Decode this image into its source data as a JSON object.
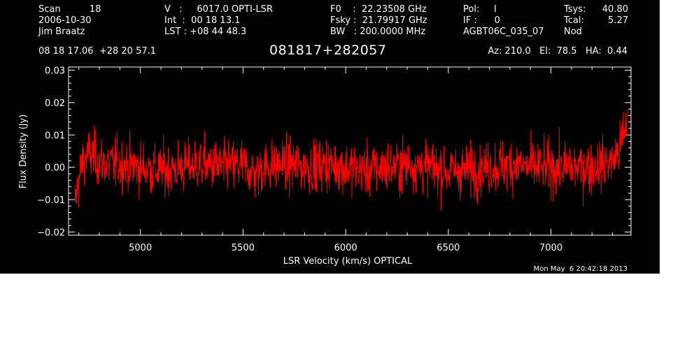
{
  "header": {
    "col1": [
      "Scan          18",
      "2006-10-30",
      "Jim Braatz"
    ],
    "col2": [
      "V   :     6017.0 OPTI-LSR",
      "Int  :  00 18 13.1",
      "LST : +08 44 48.3"
    ],
    "col3": [
      "F0    :  22.23508 GHz",
      "Fsky :  21.79917 GHz",
      "BW   : 200.0000 MHz"
    ],
    "col4": [
      "Pol:     I",
      "IF :      0",
      "AGBT06C_035_07"
    ],
    "col5": [
      "Tsys:",
      "Tcal:",
      "Nod"
    ],
    "col6": [
      "40.80",
      "5.27",
      ""
    ],
    "coords": "08 18 17.06  +28 20 57.1",
    "source": "081817+282057",
    "az_el_ha": "Az: 210.0   El:  78.5   HA:  0.44"
  },
  "timestamp": "Mon May  6 20:42:18 2013",
  "colors": {
    "background": "#000000",
    "axes": "#ffffff",
    "trace": "#ff0000"
  },
  "chart_data": {
    "type": "line",
    "title": "081817+282057",
    "xlabel": "LSR Velocity (km/s) OPTICAL",
    "ylabel": "Flux Density (Jy)",
    "xlim": [
      4650,
      7390
    ],
    "ylim": [
      -0.021,
      0.031
    ],
    "xticks": [
      5000,
      5500,
      6000,
      6500,
      7000
    ],
    "xtick_labels": [
      "5000",
      "5500",
      "6000",
      "6500",
      "7000"
    ],
    "yticks": [
      -0.02,
      -0.01,
      0.0,
      0.01,
      0.02,
      0.03
    ],
    "ytick_labels": [
      "−0.02",
      "−0.01",
      "0.00",
      "0.01",
      "0.02",
      "0.03"
    ],
    "grid": false,
    "series": [
      {
        "x": [
          4680,
          4700,
          4720,
          4750,
          4780,
          4800,
          4850,
          4900,
          5000,
          5100,
          5200,
          5300,
          5400,
          5500,
          5550,
          5600,
          5700,
          5800,
          5900,
          6000,
          6100,
          6200,
          6300,
          6400,
          6500,
          6600,
          6700,
          6800,
          6900,
          7000,
          7100,
          7200,
          7250,
          7300,
          7330,
          7350,
          7370
        ],
        "y": [
          -0.011,
          -0.004,
          0.002,
          0.004,
          0.003,
          0.002,
          0.001,
          0.001,
          0.0,
          -0.001,
          0.0,
          0.001,
          0.0,
          0.001,
          -0.002,
          0.0,
          0.001,
          0.0,
          0.001,
          0.0,
          -0.001,
          0.0,
          0.001,
          0.0,
          -0.001,
          -0.001,
          0.0,
          0.001,
          0.0,
          0.0,
          0.0,
          0.0,
          0.001,
          0.002,
          0.005,
          0.009,
          0.014
        ],
        "noise_rms": 0.004
      }
    ]
  }
}
